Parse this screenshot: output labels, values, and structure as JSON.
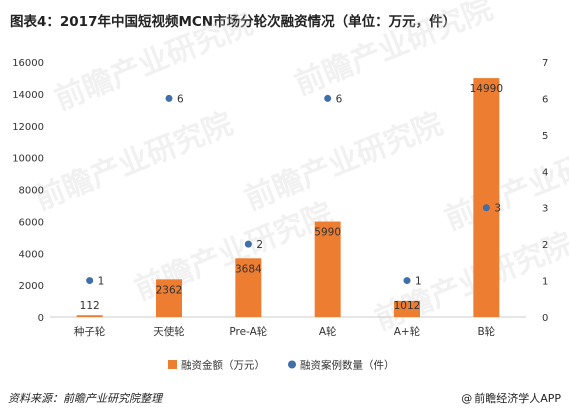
{
  "title": "图表4：2017年中国短视频MCN市场分轮次融资情况（单位：万元，件）",
  "footer": {
    "source": "资料来源：前瞻产业研究院整理",
    "brand": "前瞻经济学人APP",
    "copyright_symbol": "@"
  },
  "watermark": "前瞻产业研究院",
  "colors": {
    "bar": "#ed7d31",
    "dot": "#3f6ea8",
    "axis": "#cccccc"
  },
  "chart_data": {
    "type": "bar",
    "categories": [
      "种子轮",
      "天使轮",
      "Pre-A轮",
      "A轮",
      "A+轮",
      "B轮"
    ],
    "series": [
      {
        "name": "融资金额（万元）",
        "type": "bar",
        "axis": "left",
        "values": [
          112,
          2362,
          3684,
          5990,
          1012,
          14990
        ]
      },
      {
        "name": "融资案例数量（件）",
        "type": "scatter",
        "axis": "right",
        "values": [
          1,
          6,
          2,
          6,
          1,
          3
        ]
      }
    ],
    "y_left": {
      "min": 0,
      "max": 16000,
      "ticks": [
        "0",
        "2000",
        "4000",
        "6000",
        "8000",
        "10000",
        "12000",
        "14000",
        "16000"
      ]
    },
    "y_right": {
      "min": 0,
      "max": 7,
      "ticks": [
        "0",
        "1",
        "2",
        "3",
        "4",
        "5",
        "6",
        "7"
      ]
    },
    "legend_position": "bottom",
    "grid": false
  }
}
